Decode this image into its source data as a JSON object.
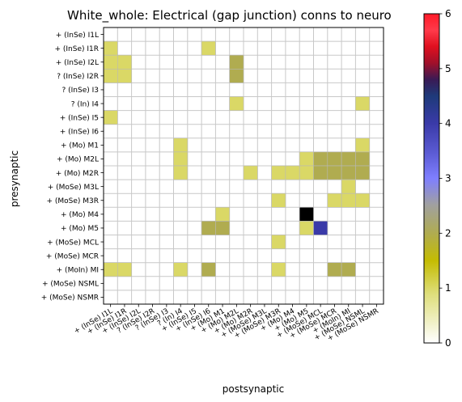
{
  "chart_data": {
    "type": "heatmap",
    "title": "White_whole: Electrical (gap junction) conns to neuro",
    "xlabel": "postsynaptic",
    "ylabel": "presynaptic",
    "labels": [
      "+ (InSe) I1L",
      "+ (InSe) I1R",
      "+ (InSe) I2L",
      "? (InSe) I2R",
      "? (InSe) I3",
      "? (In) I4",
      "+ (InSe) I5",
      "+ (InSe) I6",
      "+ (Mo) M1",
      "+ (Mo) M2L",
      "+ (Mo) M2R",
      "+ (MoSe) M3L",
      "+ (MoSe) M3R",
      "+ (Mo) M4",
      "+ (Mo) M5",
      "+ (MoSe) MCL",
      "+ (MoSe) MCR",
      "+ (MoIn) MI",
      "+ (MoSe) NSML",
      "+ (MoSe) NSMR"
    ],
    "cells": [
      [
        1,
        0,
        1
      ],
      [
        1,
        7,
        1
      ],
      [
        2,
        0,
        1
      ],
      [
        2,
        1,
        1
      ],
      [
        2,
        9,
        2
      ],
      [
        3,
        0,
        1
      ],
      [
        3,
        1,
        1
      ],
      [
        3,
        9,
        2
      ],
      [
        5,
        9,
        1
      ],
      [
        5,
        18,
        1
      ],
      [
        6,
        0,
        1
      ],
      [
        8,
        5,
        1
      ],
      [
        8,
        18,
        1
      ],
      [
        9,
        5,
        1
      ],
      [
        9,
        14,
        1
      ],
      [
        9,
        15,
        2
      ],
      [
        9,
        16,
        2
      ],
      [
        9,
        17,
        2
      ],
      [
        9,
        18,
        2
      ],
      [
        10,
        5,
        1
      ],
      [
        10,
        10,
        1
      ],
      [
        10,
        12,
        1
      ],
      [
        10,
        13,
        1
      ],
      [
        10,
        14,
        1
      ],
      [
        10,
        15,
        2
      ],
      [
        10,
        16,
        2
      ],
      [
        10,
        17,
        2
      ],
      [
        10,
        18,
        2
      ],
      [
        11,
        17,
        1
      ],
      [
        12,
        12,
        1
      ],
      [
        12,
        16,
        1
      ],
      [
        12,
        17,
        1
      ],
      [
        12,
        18,
        1
      ],
      [
        13,
        8,
        1
      ],
      [
        13,
        14,
        6
      ],
      [
        14,
        7,
        2
      ],
      [
        14,
        8,
        2
      ],
      [
        14,
        14,
        1
      ],
      [
        14,
        15,
        4
      ],
      [
        15,
        12,
        1
      ],
      [
        17,
        0,
        1
      ],
      [
        17,
        1,
        1
      ],
      [
        17,
        5,
        1
      ],
      [
        17,
        7,
        2
      ],
      [
        17,
        12,
        1
      ],
      [
        17,
        16,
        2
      ],
      [
        17,
        17,
        2
      ]
    ],
    "vmin": 0,
    "vmax": 6,
    "grid": true,
    "colorbar": {
      "ticks": [
        "0",
        "1",
        "2",
        "3",
        "4",
        "5",
        "6"
      ],
      "stops": [
        [
          0,
          "#ffffff"
        ],
        [
          0.07,
          "#efefc0"
        ],
        [
          0.15,
          "#dede7a"
        ],
        [
          0.25,
          "#c4bc02"
        ],
        [
          0.333,
          "#b0ac50"
        ],
        [
          0.42,
          "#a0a0a0"
        ],
        [
          0.5,
          "#7f7fff"
        ],
        [
          0.58,
          "#5a5ad2"
        ],
        [
          0.667,
          "#3a3aa8"
        ],
        [
          0.75,
          "#1e3a7a"
        ],
        [
          0.8,
          "#3a1a55"
        ],
        [
          0.85,
          "#a0102a"
        ],
        [
          0.9,
          "#e0101f"
        ],
        [
          0.95,
          "#ff3a4a"
        ],
        [
          1,
          "#ff1a28"
        ]
      ]
    }
  }
}
